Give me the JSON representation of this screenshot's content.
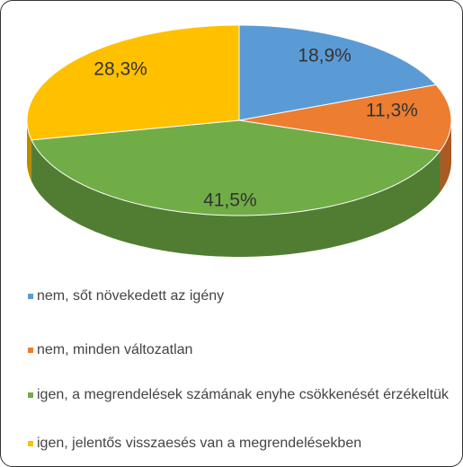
{
  "chart_data": {
    "type": "pie",
    "categories": [
      "nem, sőt növekedett az igény",
      "nem, minden változatlan",
      "igen, a megrendelések számának enyhe csökkenését érzékeltük",
      "igen, jelentős visszaesés van a megrendelésekben"
    ],
    "values": [
      18.9,
      11.3,
      41.5,
      28.3
    ],
    "value_labels": [
      "18,9%",
      "11,3%",
      "41,5%",
      "28,3%"
    ],
    "colors": [
      "#5b9bd5",
      "#ed7d31",
      "#70ad47",
      "#ffc000"
    ],
    "legend": "bottom"
  }
}
